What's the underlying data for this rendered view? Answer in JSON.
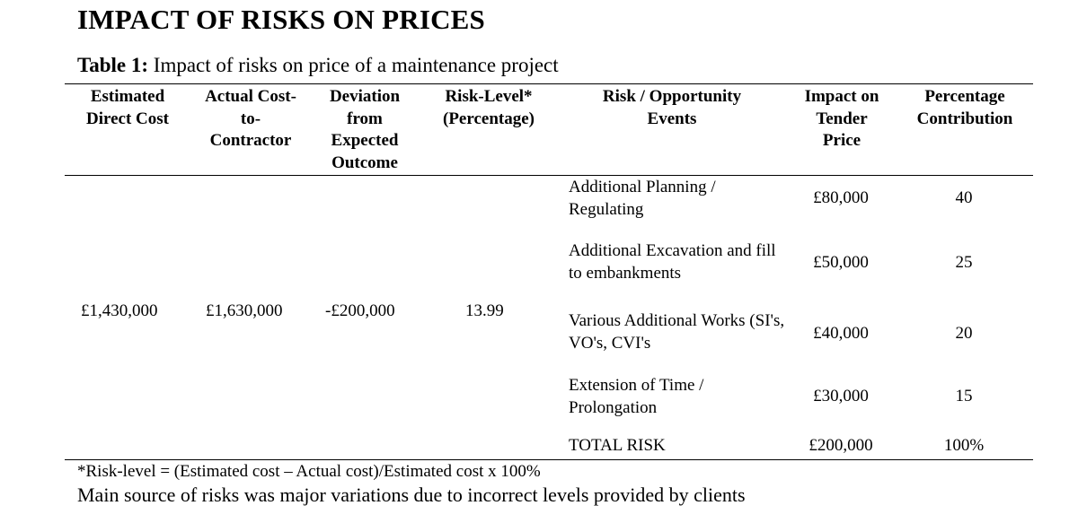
{
  "heading": "IMPACT OF RISKS ON PRICES",
  "caption": {
    "label": "Table 1:",
    "text": " Impact of risks on price of a maintenance project"
  },
  "table": {
    "headers": [
      "Estimated Direct Cost",
      "Actual Cost-to-Contractor",
      "Deviation from Expected Outcome",
      "Risk-Level* (Percentage)",
      "Risk / Opportunity Events",
      "Impact on Tender Price",
      "Percentage Contribution"
    ],
    "summary": {
      "estimated_direct_cost": "£1,430,000",
      "actual_cost": "£1,630,000",
      "deviation": "-£200,000",
      "risk_level": "13.99"
    },
    "rows": [
      {
        "event": "Additional Planning / Regulating",
        "impact": "£80,000",
        "pct": "40"
      },
      {
        "event": "Additional Excavation and fill to embankments",
        "impact": "£50,000",
        "pct": "25"
      },
      {
        "event": "Various Additional Works (SI's, VO's, CVI's",
        "impact": "£40,000",
        "pct": "20"
      },
      {
        "event": "Extension of Time / Prolongation",
        "impact": "£30,000",
        "pct": "15"
      }
    ],
    "total": {
      "label": "TOTAL RISK",
      "impact": "£200,000",
      "pct": "100%"
    }
  },
  "footnote": "*Risk-level = (Estimated cost – Actual cost)/Estimated cost x 100%",
  "source_note": "Main source of risks was major variations due to incorrect levels provided by clients"
}
